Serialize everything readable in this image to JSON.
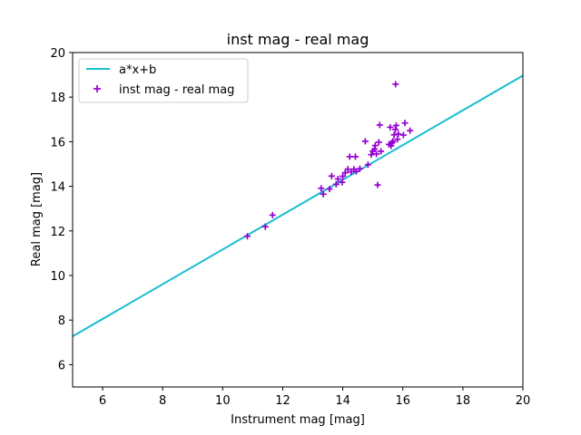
{
  "chart_data": {
    "type": "scatter",
    "title": "inst mag - real mag",
    "xlabel": "Instrument mag [mag]",
    "ylabel": "Real mag [mag]",
    "xlim": [
      5,
      20
    ],
    "ylim": [
      5,
      20
    ],
    "xticks": [
      6,
      8,
      10,
      12,
      14,
      16,
      18,
      20
    ],
    "yticks": [
      6,
      8,
      10,
      12,
      14,
      16,
      18,
      20
    ],
    "grid": false,
    "legend_position": "top-left",
    "series": [
      {
        "name": "a*x+b",
        "kind": "line",
        "color": "#17becf",
        "x": [
          5,
          20
        ],
        "y": [
          7.27,
          18.97
        ]
      },
      {
        "name": "inst mag - real mag",
        "kind": "scatter",
        "marker": "plus",
        "color": "#9400d3",
        "points": [
          [
            10.82,
            11.76
          ],
          [
            11.42,
            12.19
          ],
          [
            11.66,
            12.71
          ],
          [
            13.28,
            13.91
          ],
          [
            13.35,
            13.65
          ],
          [
            13.56,
            13.88
          ],
          [
            13.63,
            14.46
          ],
          [
            13.78,
            14.09
          ],
          [
            13.84,
            14.33
          ],
          [
            13.98,
            14.18
          ],
          [
            14.0,
            14.45
          ],
          [
            14.08,
            14.61
          ],
          [
            14.17,
            14.77
          ],
          [
            14.23,
            15.33
          ],
          [
            14.28,
            14.65
          ],
          [
            14.37,
            14.77
          ],
          [
            14.42,
            15.33
          ],
          [
            14.45,
            14.67
          ],
          [
            14.57,
            14.79
          ],
          [
            14.75,
            16.02
          ],
          [
            14.84,
            14.97
          ],
          [
            14.95,
            15.42
          ],
          [
            15.0,
            15.58
          ],
          [
            15.06,
            15.67
          ],
          [
            15.08,
            15.83
          ],
          [
            15.12,
            15.45
          ],
          [
            15.16,
            14.06
          ],
          [
            15.2,
            15.98
          ],
          [
            15.23,
            16.75
          ],
          [
            15.27,
            15.57
          ],
          [
            15.54,
            15.88
          ],
          [
            15.58,
            16.65
          ],
          [
            15.61,
            15.82
          ],
          [
            15.64,
            15.95
          ],
          [
            15.67,
            16.02
          ],
          [
            15.71,
            16.31
          ],
          [
            15.75,
            16.55
          ],
          [
            15.76,
            18.58
          ],
          [
            15.78,
            16.73
          ],
          [
            15.82,
            16.11
          ],
          [
            15.85,
            16.35
          ],
          [
            16.02,
            16.3
          ],
          [
            16.07,
            16.84
          ],
          [
            16.24,
            16.5
          ]
        ]
      }
    ]
  }
}
